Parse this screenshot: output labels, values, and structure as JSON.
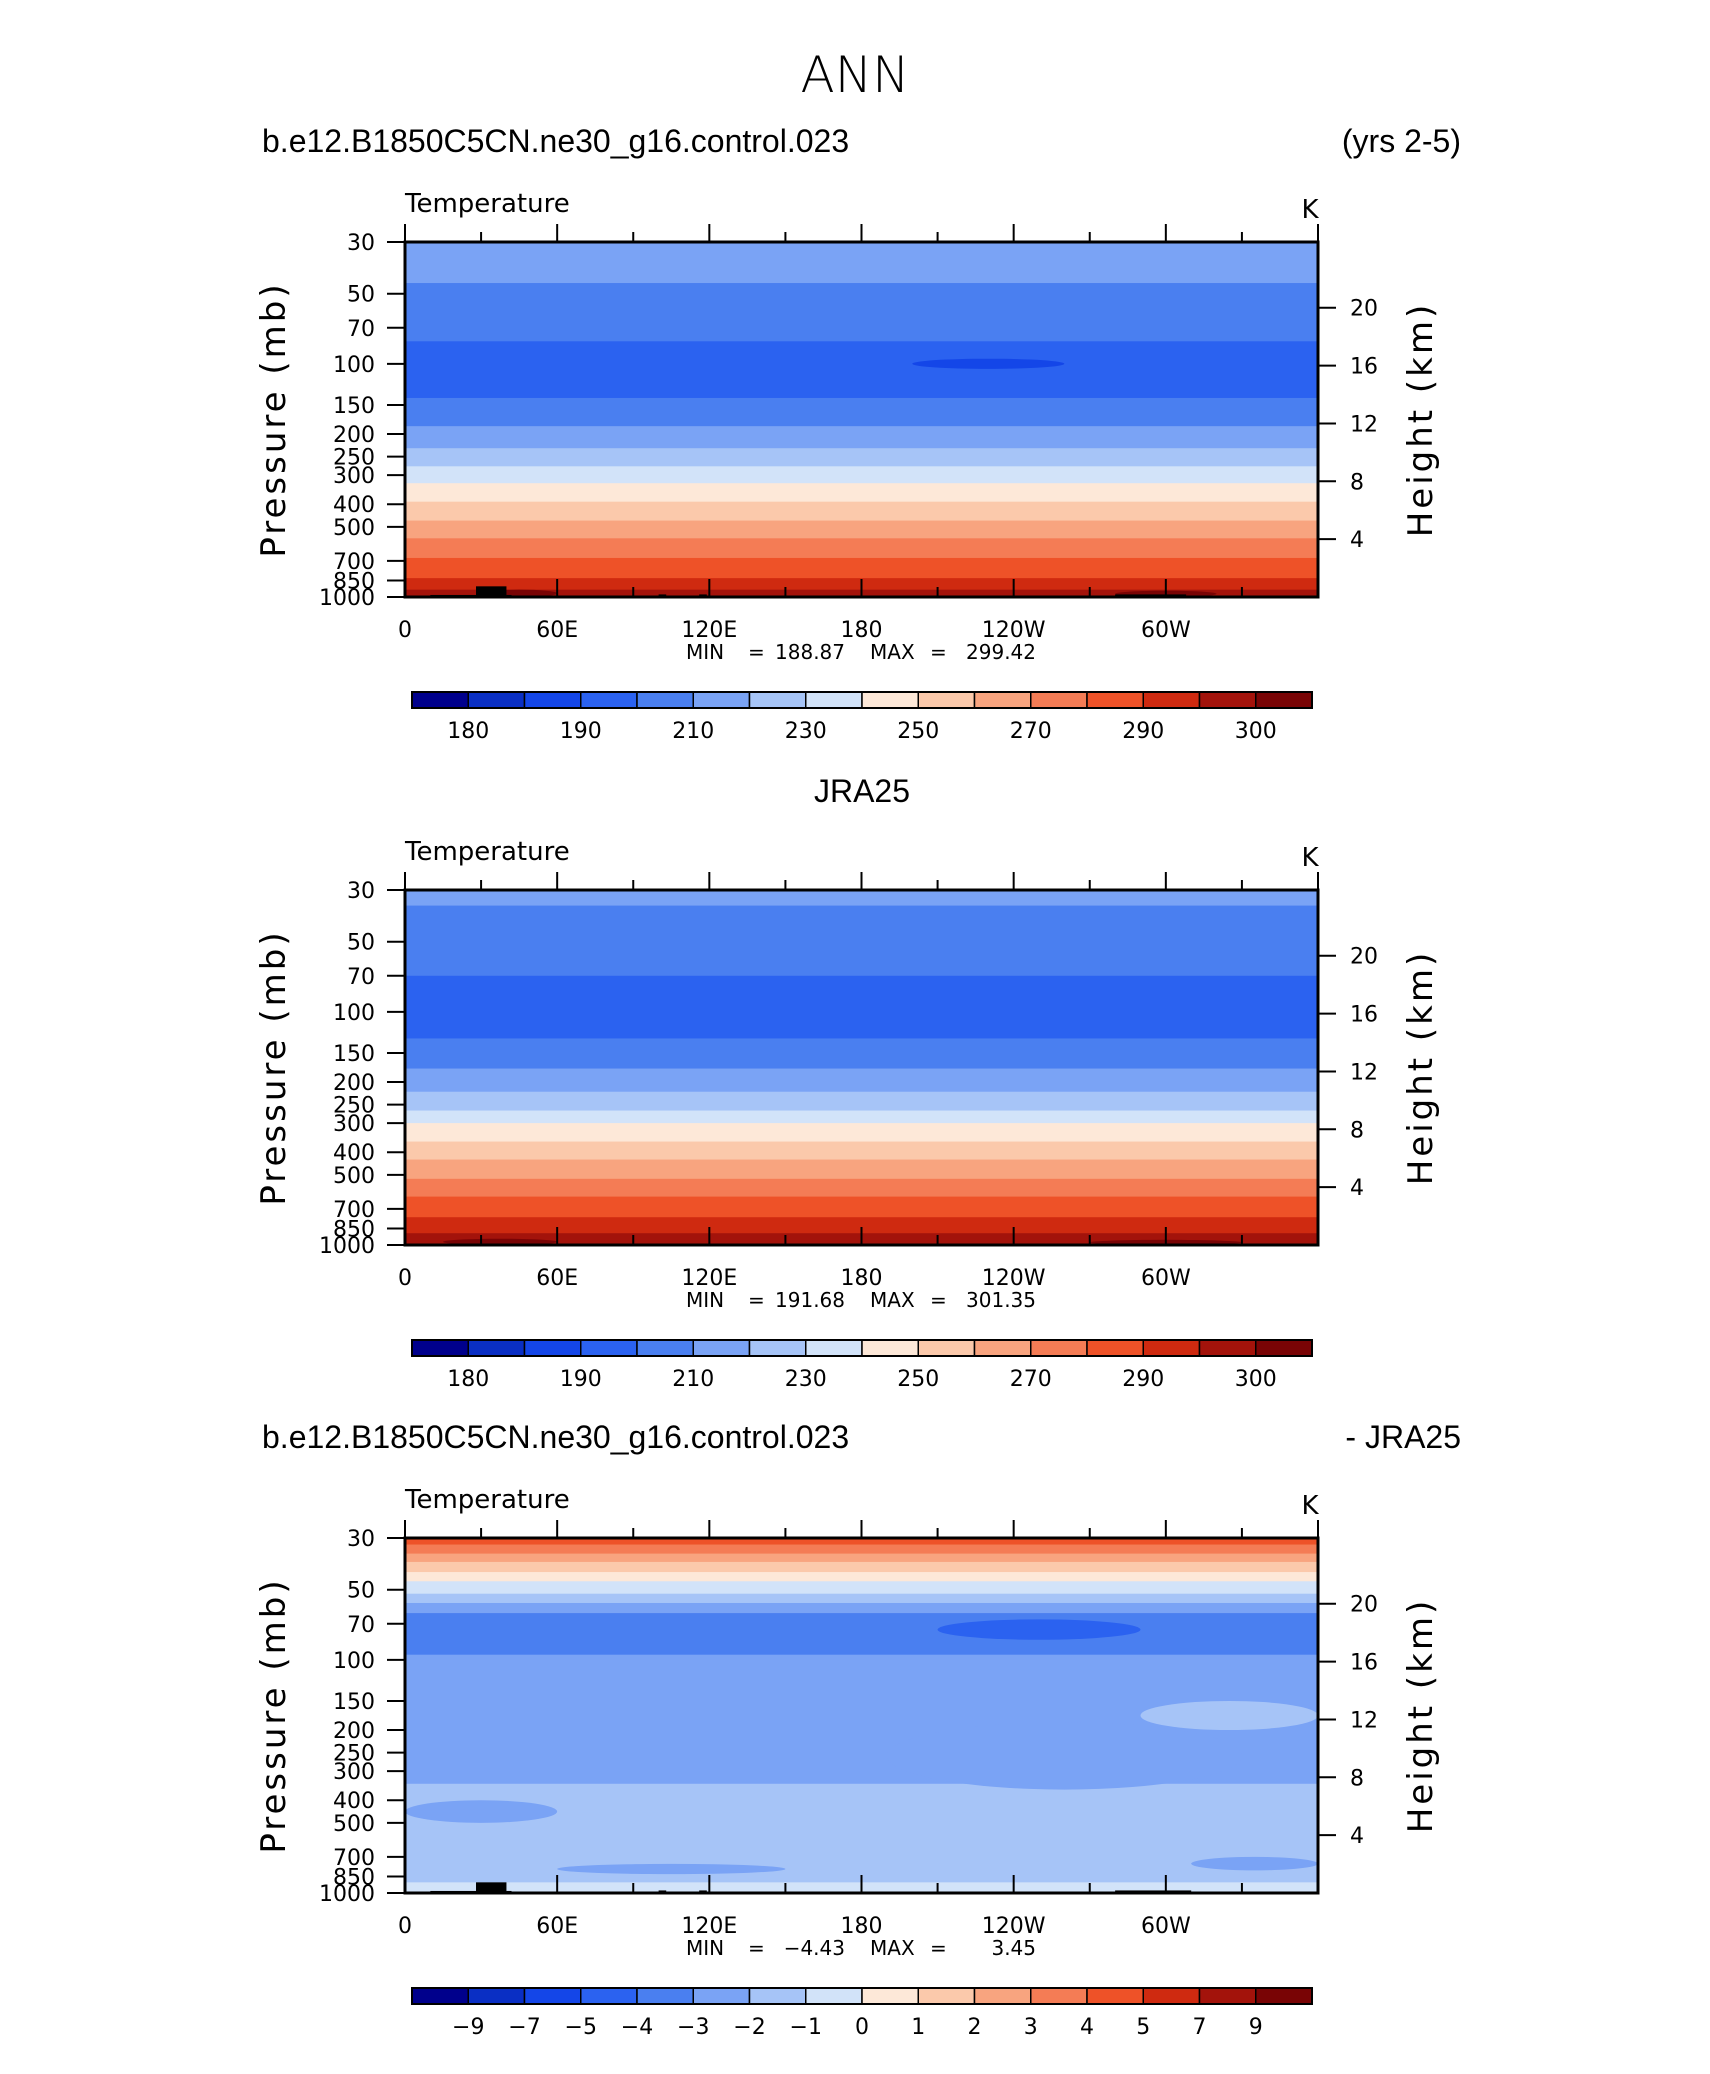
{
  "figure": {
    "title": "ANN"
  },
  "colors": {
    "land": "#000000",
    "frame": "#000000",
    "background": "#ffffff"
  },
  "palettes": {
    "temperature": [
      "#00008c",
      "#0a2fc4",
      "#1446e8",
      "#2b62f0",
      "#4a7ff0",
      "#7aa3f5",
      "#a6c4f7",
      "#d2e3f9",
      "#fde8d8",
      "#fbc9ab",
      "#f8a47f",
      "#f47c55",
      "#ee5228",
      "#cf2a10",
      "#a3130b",
      "#790405"
    ],
    "difference": [
      "#00008c",
      "#0a2fc4",
      "#1446e8",
      "#2b62f0",
      "#4a7ff0",
      "#7aa3f5",
      "#a6c4f7",
      "#d2e3f9",
      "#fde8d8",
      "#fbc9ab",
      "#f8a47f",
      "#f47c55",
      "#ee5228",
      "#cf2a10",
      "#a3130b",
      "#790405"
    ]
  },
  "chart_data": [
    {
      "type": "heatmap",
      "panel_left_title": "b.e12.B1850C5CN.ne30_g16.control.023",
      "panel_right_title": "(yrs 2-5)",
      "variable": "Temperature",
      "units": "K",
      "xlabel": "",
      "ylabel": "Pressure (mb)",
      "ylabel_right": "Height (km)",
      "x_ticks": [
        "0",
        "60E",
        "120E",
        "180",
        "120W",
        "60W"
      ],
      "y_ticks": [
        "30",
        "50",
        "70",
        "100",
        "150",
        "200",
        "250",
        "300",
        "400",
        "500",
        "700",
        "850",
        "1000"
      ],
      "y_ticks_right": [
        "20",
        "16",
        "12",
        "8",
        "4"
      ],
      "stats": {
        "min_label": "MIN",
        "min": "188.87",
        "max_label": "MAX",
        "max": "299.42"
      },
      "levels": [
        175,
        180,
        185,
        190,
        200,
        210,
        220,
        230,
        240,
        250,
        260,
        270,
        280,
        290,
        295,
        300,
        305
      ],
      "colorbar_labels": [
        "180",
        "190",
        "210",
        "230",
        "250",
        "270",
        "290",
        "300"
      ],
      "palette": "temperature",
      "bands": [
        {
          "p": [
            30,
            45
          ],
          "color": 5
        },
        {
          "p": [
            45,
            80
          ],
          "color": 4
        },
        {
          "p": [
            80,
            140
          ],
          "color": 3
        },
        {
          "p": [
            140,
            185
          ],
          "color": 4
        },
        {
          "p": [
            185,
            230
          ],
          "color": 5
        },
        {
          "p": [
            230,
            275
          ],
          "color": 6
        },
        {
          "p": [
            275,
            325
          ],
          "color": 7
        },
        {
          "p": [
            325,
            390
          ],
          "color": 8
        },
        {
          "p": [
            390,
            470
          ],
          "color": 9
        },
        {
          "p": [
            470,
            560
          ],
          "color": 10
        },
        {
          "p": [
            560,
            680
          ],
          "color": 11
        },
        {
          "p": [
            680,
            830
          ],
          "color": 12
        },
        {
          "p": [
            830,
            930
          ],
          "color": 13
        },
        {
          "p": [
            930,
            1000
          ],
          "color": 14
        }
      ],
      "blobs": [
        {
          "lon": [
            200,
            260
          ],
          "p": [
            95,
            105
          ],
          "color": 2
        },
        {
          "lon": [
            30,
            60
          ],
          "p": [
            930,
            1000
          ],
          "color": 15
        },
        {
          "lon": [
            280,
            320
          ],
          "p": [
            940,
            1000
          ],
          "color": 15
        }
      ],
      "land": [
        {
          "lon": [
            10,
            30
          ],
          "p": [
            980,
            1000
          ]
        },
        {
          "lon": [
            28,
            40
          ],
          "p": [
            900,
            1000
          ]
        },
        {
          "lon": [
            40,
            42
          ],
          "p": [
            980,
            1000
          ]
        },
        {
          "lon": [
            100,
            103
          ],
          "p": [
            975,
            1000
          ]
        },
        {
          "lon": [
            116,
            119
          ],
          "p": [
            975,
            1000
          ]
        },
        {
          "lon": [
            280,
            308
          ],
          "p": [
            975,
            1000
          ]
        }
      ]
    },
    {
      "type": "heatmap",
      "panel_center_title": "JRA25",
      "variable": "Temperature",
      "units": "K",
      "xlabel": "",
      "ylabel": "Pressure (mb)",
      "ylabel_right": "Height (km)",
      "x_ticks": [
        "0",
        "60E",
        "120E",
        "180",
        "120W",
        "60W"
      ],
      "y_ticks": [
        "30",
        "50",
        "70",
        "100",
        "150",
        "200",
        "250",
        "300",
        "400",
        "500",
        "700",
        "850",
        "1000"
      ],
      "y_ticks_right": [
        "20",
        "16",
        "12",
        "8",
        "4"
      ],
      "stats": {
        "min_label": "MIN",
        "min": "191.68",
        "max_label": "MAX",
        "max": "301.35"
      },
      "levels": [
        175,
        180,
        185,
        190,
        200,
        210,
        220,
        230,
        240,
        250,
        260,
        270,
        280,
        290,
        295,
        300,
        305
      ],
      "colorbar_labels": [
        "180",
        "190",
        "210",
        "230",
        "250",
        "270",
        "290",
        "300"
      ],
      "palette": "temperature",
      "bands": [
        {
          "p": [
            30,
            35
          ],
          "color": 5
        },
        {
          "p": [
            35,
            70
          ],
          "color": 4
        },
        {
          "p": [
            70,
            130
          ],
          "color": 3
        },
        {
          "p": [
            130,
            175
          ],
          "color": 4
        },
        {
          "p": [
            175,
            220
          ],
          "color": 5
        },
        {
          "p": [
            220,
            265
          ],
          "color": 6
        },
        {
          "p": [
            265,
            300
          ],
          "color": 7
        },
        {
          "p": [
            300,
            360
          ],
          "color": 8
        },
        {
          "p": [
            360,
            430
          ],
          "color": 9
        },
        {
          "p": [
            430,
            520
          ],
          "color": 10
        },
        {
          "p": [
            520,
            620
          ],
          "color": 11
        },
        {
          "p": [
            620,
            760
          ],
          "color": 12
        },
        {
          "p": [
            760,
            890
          ],
          "color": 13
        },
        {
          "p": [
            890,
            1000
          ],
          "color": 14
        }
      ],
      "blobs": [
        {
          "lon": [
            15,
            60
          ],
          "p": [
            940,
            1000
          ],
          "color": 15
        },
        {
          "lon": [
            270,
            330
          ],
          "p": [
            950,
            1000
          ],
          "color": 15
        }
      ],
      "land": []
    },
    {
      "type": "heatmap",
      "panel_left_title": "b.e12.B1850C5CN.ne30_g16.control.023",
      "panel_right_title": "- JRA25",
      "variable": "Temperature",
      "units": "K",
      "xlabel": "",
      "ylabel": "Pressure (mb)",
      "ylabel_right": "Height (km)",
      "x_ticks": [
        "0",
        "60E",
        "120E",
        "180",
        "120W",
        "60W"
      ],
      "y_ticks": [
        "30",
        "50",
        "70",
        "100",
        "150",
        "200",
        "250",
        "300",
        "400",
        "500",
        "700",
        "850",
        "1000"
      ],
      "y_ticks_right": [
        "20",
        "16",
        "12",
        "8",
        "4"
      ],
      "stats": {
        "min_label": "MIN",
        "min": "−4.43",
        "max_label": "MAX",
        "max": "3.45"
      },
      "levels": [
        -11,
        -9,
        -7,
        -5,
        -4,
        -3,
        -2,
        -1,
        0,
        1,
        2,
        3,
        4,
        5,
        7,
        9,
        11
      ],
      "colorbar_labels": [
        "−9",
        "−7",
        "−5",
        "−4",
        "−3",
        "−2",
        "−1",
        "0",
        "1",
        "2",
        "3",
        "4",
        "5",
        "7",
        "9"
      ],
      "palette": "difference",
      "bands": [
        {
          "p": [
            30,
            32
          ],
          "color": 12
        },
        {
          "p": [
            32,
            35
          ],
          "color": 11
        },
        {
          "p": [
            35,
            38
          ],
          "color": 10
        },
        {
          "p": [
            38,
            42
          ],
          "color": 9
        },
        {
          "p": [
            42,
            46
          ],
          "color": 8
        },
        {
          "p": [
            46,
            52
          ],
          "color": 7
        },
        {
          "p": [
            52,
            57
          ],
          "color": 6
        },
        {
          "p": [
            57,
            63
          ],
          "color": 5
        },
        {
          "p": [
            63,
            95
          ],
          "color": 4
        },
        {
          "p": [
            95,
            340
          ],
          "color": 5
        },
        {
          "p": [
            340,
            900
          ],
          "color": 6
        },
        {
          "p": [
            900,
            1000
          ],
          "color": 7
        }
      ],
      "blobs": [
        {
          "lon": [
            210,
            290
          ],
          "p": [
            67,
            82
          ],
          "color": 3
        },
        {
          "lon": [
            190,
            330
          ],
          "p": [
            185,
            360
          ],
          "color": 5
        },
        {
          "lon": [
            290,
            360
          ],
          "p": [
            150,
            200
          ],
          "color": 6
        },
        {
          "lon": [
            0,
            60
          ],
          "p": [
            400,
            500
          ],
          "color": 5
        },
        {
          "lon": [
            60,
            150
          ],
          "p": [
            750,
            830
          ],
          "color": 5
        },
        {
          "lon": [
            310,
            360
          ],
          "p": [
            700,
            800
          ],
          "color": 5
        },
        {
          "lon": [
            150,
            280
          ],
          "p": [
            930,
            1000
          ],
          "color": 7
        }
      ],
      "land": [
        {
          "lon": [
            10,
            30
          ],
          "p": [
            980,
            1000
          ]
        },
        {
          "lon": [
            28,
            40
          ],
          "p": [
            900,
            1000
          ]
        },
        {
          "lon": [
            40,
            42
          ],
          "p": [
            980,
            1000
          ]
        },
        {
          "lon": [
            100,
            103
          ],
          "p": [
            975,
            1000
          ]
        },
        {
          "lon": [
            116,
            119
          ],
          "p": [
            975,
            1000
          ]
        },
        {
          "lon": [
            280,
            310
          ],
          "p": [
            975,
            1000
          ]
        }
      ]
    }
  ]
}
